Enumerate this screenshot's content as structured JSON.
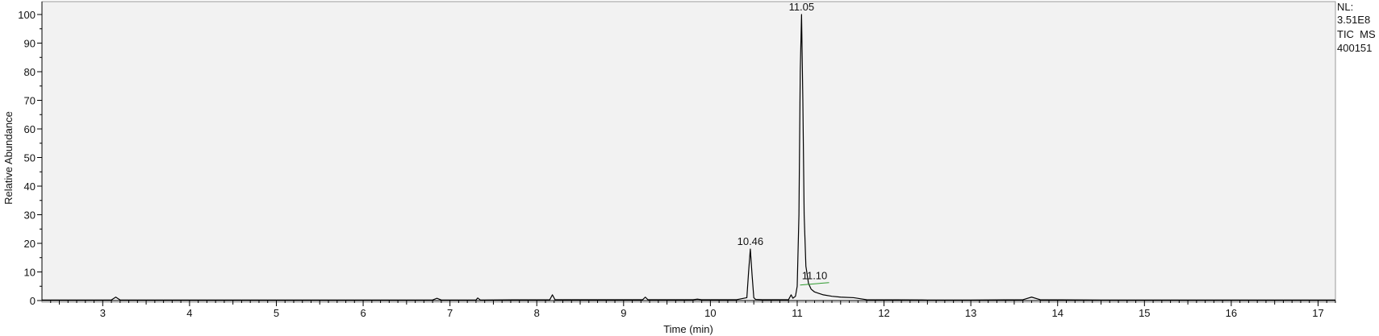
{
  "chart_data": {
    "type": "line",
    "title": "",
    "xlabel": "Time (min)",
    "ylabel": "Relative Abundance",
    "xlim": [
      2.3,
      17.2
    ],
    "ylim": [
      0,
      100
    ],
    "x_ticks": [
      "3",
      "4",
      "5",
      "6",
      "7",
      "8",
      "9",
      "10",
      "11",
      "12",
      "13",
      "14",
      "15",
      "16",
      "17"
    ],
    "y_ticks": [
      "0",
      "10",
      "20",
      "30",
      "40",
      "50",
      "60",
      "70",
      "80",
      "90",
      "100"
    ],
    "grid": false,
    "background": "#f2f2f2",
    "line_color": "#000000",
    "series": [
      {
        "x": [
          2.3,
          3.1,
          3.15,
          3.2,
          4.0,
          5.0,
          6.0,
          6.8,
          6.85,
          6.9,
          7.3,
          7.32,
          7.35,
          8.15,
          8.18,
          8.21,
          9.0,
          9.22,
          9.25,
          9.28,
          9.8,
          9.85,
          9.9,
          10.3,
          10.42,
          10.44,
          10.46,
          10.48,
          10.5,
          10.52,
          10.6,
          10.9,
          10.93,
          10.95,
          10.98,
          11.0,
          11.02,
          11.035,
          11.05,
          11.065,
          11.08,
          11.1,
          11.13,
          11.16,
          11.2,
          11.3,
          11.4,
          11.5,
          11.65,
          11.8,
          12.5,
          13.0,
          13.6,
          13.7,
          13.8,
          14.5,
          15.5,
          16.5,
          17.2
        ],
        "y": [
          0.2,
          0.2,
          1.2,
          0.2,
          0.2,
          0.2,
          0.2,
          0.2,
          0.8,
          0.2,
          0.2,
          0.9,
          0.2,
          0.3,
          2.0,
          0.3,
          0.3,
          0.3,
          1.2,
          0.3,
          0.3,
          0.5,
          0.3,
          0.3,
          1.0,
          10.0,
          18.0,
          9.0,
          1.0,
          0.4,
          0.3,
          0.3,
          2.0,
          0.8,
          1.5,
          5.0,
          30.0,
          80.0,
          100.0,
          70.0,
          30.0,
          12.0,
          6.0,
          4.0,
          3.0,
          2.0,
          1.5,
          1.2,
          1.0,
          0.3,
          0.2,
          0.2,
          0.3,
          1.2,
          0.3,
          0.2,
          0.2,
          0.2,
          0.2
        ]
      }
    ],
    "annotations": [
      {
        "text": "11.05",
        "x": 11.05,
        "y": 100
      },
      {
        "text": "10.46",
        "x": 10.46,
        "y": 18
      },
      {
        "text": "11.10",
        "x": 11.2,
        "y": 6,
        "marker_color": "#2e9a2e"
      }
    ]
  },
  "info_panel": {
    "nl_label": "NL:",
    "nl_value": "3.51E8",
    "scan_filter": "TIC  MS",
    "sample_id": "400151"
  }
}
